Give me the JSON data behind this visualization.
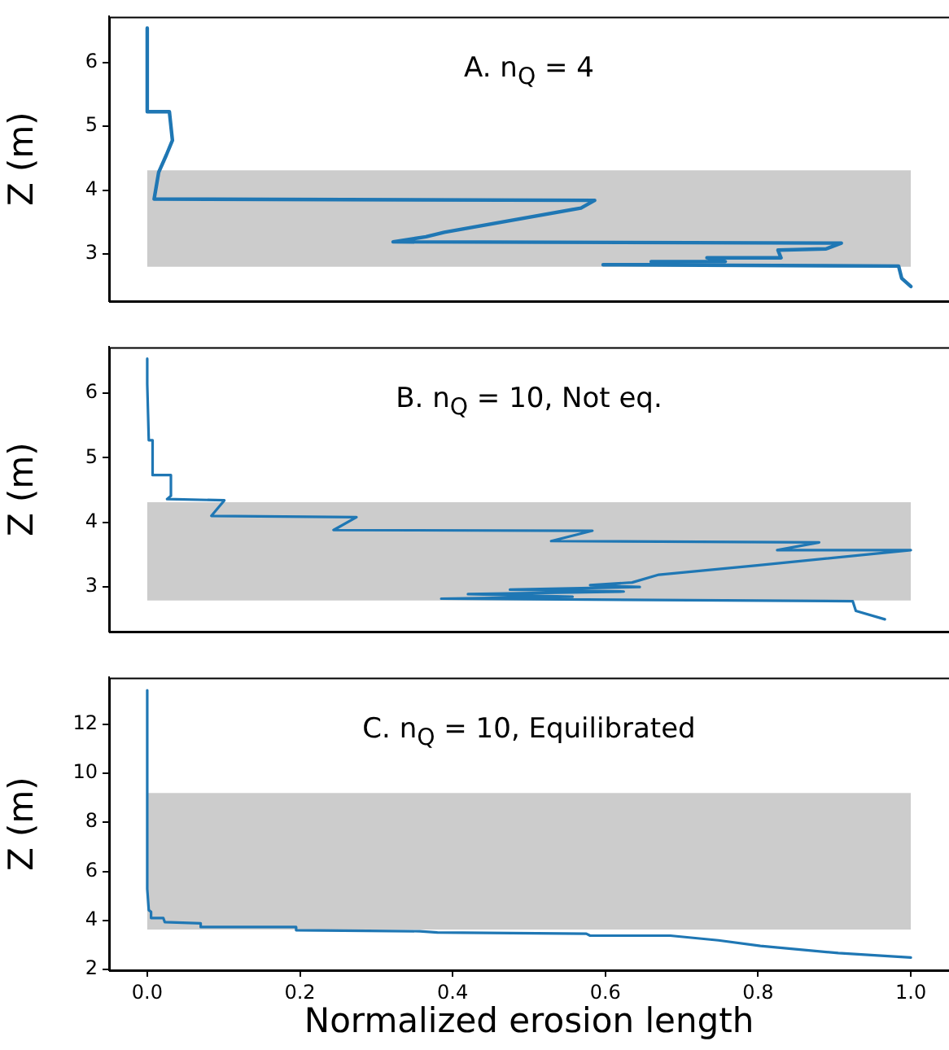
{
  "chart_data": [
    {
      "type": "line",
      "title": "A. n$_{Q}$ = 4",
      "ylabel": "Z (m)",
      "xlim": [
        -0.05,
        1.05
      ],
      "ylim": [
        2.26,
        6.72
      ],
      "yticks": [
        3,
        4,
        5,
        6
      ],
      "tick_labels": "y",
      "grid": false,
      "marker": "none",
      "line_style": "solid",
      "bands": [
        {
          "axis": "y",
          "from": 2.8,
          "to": 4.31,
          "color": "#cccccc"
        }
      ],
      "series": [
        {
          "color": "#1f77b4",
          "x": [
            0,
            0,
            0.029,
            0.033,
            0.025,
            0.015,
            0.009,
            0.586,
            0.568,
            0.389,
            0.365,
            0.322,
            0.909,
            0.889,
            0.826,
            0.83,
            0.733,
            0.757,
            0.66,
            0.672,
            0.597,
            0.984,
            0.988,
            1.0
          ],
          "values": [
            6.54,
            5.23,
            5.23,
            4.78,
            4.55,
            4.28,
            3.86,
            3.84,
            3.72,
            3.34,
            3.27,
            3.19,
            3.17,
            3.08,
            3.06,
            2.94,
            2.94,
            2.88,
            2.88,
            2.83,
            2.83,
            2.81,
            2.62,
            2.49
          ]
        }
      ]
    },
    {
      "type": "line",
      "title": "B. n$_{Q}$ = 10, Not eq.",
      "ylabel": "Z (m)",
      "xlim": [
        -0.05,
        1.05
      ],
      "ylim": [
        2.31,
        6.71
      ],
      "yticks": [
        3,
        4,
        5,
        6
      ],
      "tick_labels": "y",
      "grid": false,
      "marker": "none",
      "line_style": "solid",
      "bands": [
        {
          "axis": "y",
          "from": 2.79,
          "to": 4.31,
          "color": "#cccccc"
        }
      ],
      "series": [
        {
          "color": "#1f77b4",
          "x": [
            0,
            0,
            0.002,
            0.007,
            0.007,
            0.031,
            0.031,
            0.026,
            0.101,
            0.084,
            0.274,
            0.244,
            0.583,
            0.529,
            0.88,
            0.825,
            1.0,
            0.796,
            0.67,
            0.635,
            0.58,
            0.645,
            0.475,
            0.624,
            0.42,
            0.557,
            0.385,
            0.924,
            0.928,
            0.966
          ],
          "values": [
            6.53,
            6.14,
            5.27,
            5.27,
            4.73,
            4.73,
            4.41,
            4.36,
            4.34,
            4.1,
            4.08,
            3.88,
            3.87,
            3.71,
            3.69,
            3.57,
            3.57,
            3.33,
            3.19,
            3.07,
            3.03,
            3.0,
            2.96,
            2.93,
            2.89,
            2.85,
            2.82,
            2.78,
            2.63,
            2.5
          ]
        }
      ]
    },
    {
      "type": "line",
      "title": "C. n$_{Q}$ = 10, Equilibrated",
      "xlabel": "Normalized erosion length",
      "ylabel": "Z (m)",
      "xlim": [
        -0.05,
        1.05
      ],
      "ylim": [
        1.97,
        13.9
      ],
      "xticks": [
        {
          "value": 0,
          "label": "0.0"
        },
        {
          "value": 0.2,
          "label": "0.2"
        },
        {
          "value": 0.4,
          "label": "0.4"
        },
        {
          "value": 0.6,
          "label": "0.6"
        },
        {
          "value": 0.8,
          "label": "0.8"
        },
        {
          "value": 1,
          "label": "1.0"
        }
      ],
      "yticks": [
        2,
        4,
        6,
        8,
        10,
        12
      ],
      "grid": false,
      "marker": "none",
      "line_style": "solid",
      "bands": [
        {
          "axis": "y",
          "from": 3.63,
          "to": 9.19,
          "color": "#cccccc"
        }
      ],
      "series": [
        {
          "color": "#1f77b4",
          "x": [
            0,
            0,
            0.002,
            0.005,
            0.005,
            0.021,
            0.023,
            0.07,
            0.07,
            0.195,
            0.195,
            0.357,
            0.38,
            0.575,
            0.58,
            0.685,
            0.748,
            0.803,
            0.905,
            1.0
          ],
          "values": [
            13.38,
            5.28,
            4.42,
            4.35,
            4.1,
            4.1,
            3.93,
            3.88,
            3.73,
            3.73,
            3.6,
            3.56,
            3.51,
            3.46,
            3.38,
            3.38,
            3.19,
            2.96,
            2.67,
            2.49
          ]
        }
      ]
    }
  ]
}
